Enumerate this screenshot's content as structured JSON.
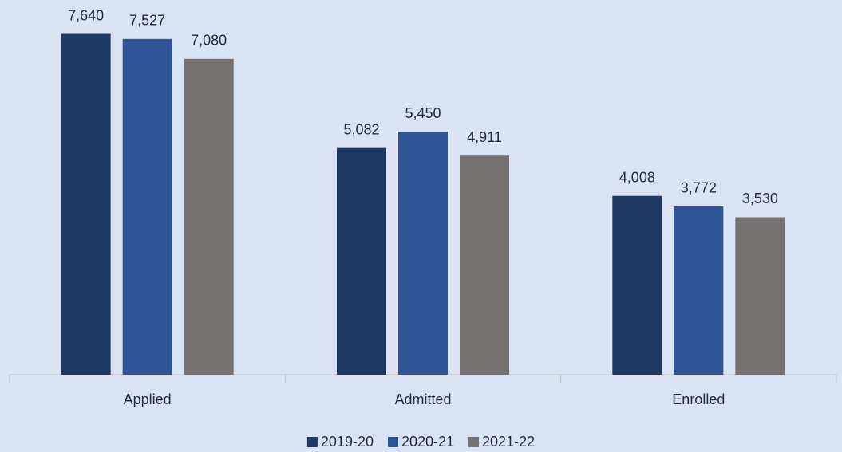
{
  "chart_data": {
    "type": "bar",
    "categories": [
      "Applied",
      "Admitted",
      "Enrolled"
    ],
    "series": [
      {
        "name": "2019-20",
        "color": "#1f3864",
        "values": [
          7640,
          5082,
          4008
        ],
        "value_labels": [
          "7,640",
          "5,082",
          "4,008"
        ]
      },
      {
        "name": "2020-21",
        "color": "#2f5597",
        "values": [
          7527,
          5450,
          3772
        ],
        "value_labels": [
          "7,527",
          "5,450",
          "3,772"
        ]
      },
      {
        "name": "2021-22",
        "color": "#767171",
        "values": [
          7080,
          4911,
          3530
        ],
        "value_labels": [
          "7,080",
          "4,911",
          "3,530"
        ]
      }
    ],
    "ylim": [
      0,
      8400
    ],
    "legend": "bottom"
  }
}
